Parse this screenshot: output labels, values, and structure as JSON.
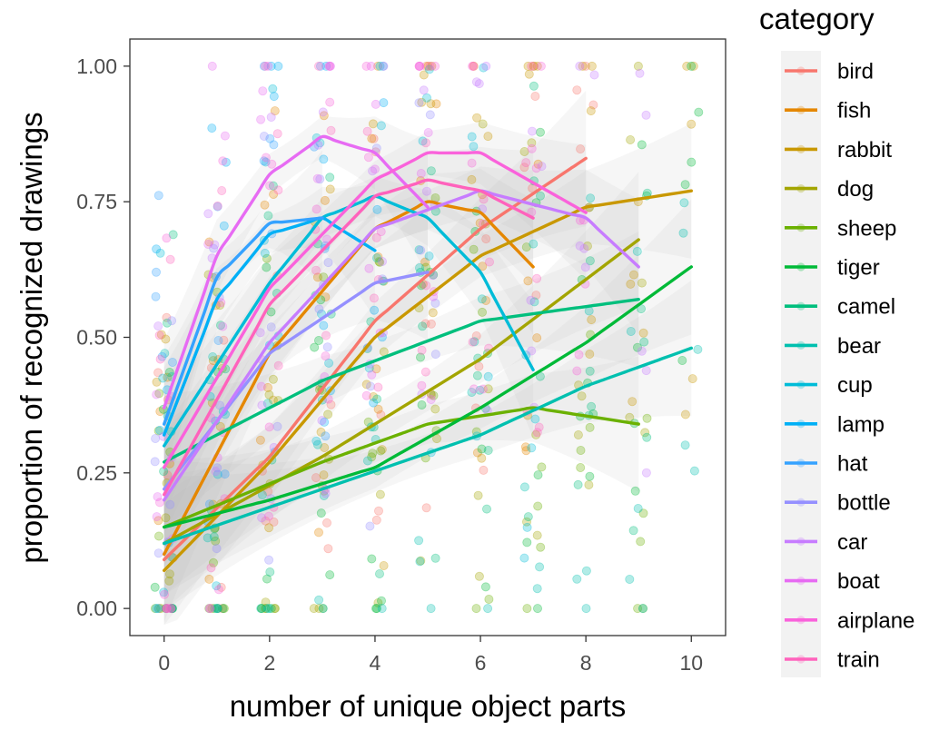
{
  "chart_data": {
    "type": "scatter",
    "xlabel": "number of unique object parts",
    "ylabel": "proportion of recognized drawings",
    "xlim": [
      -0.65,
      10.65
    ],
    "ylim": [
      -0.05,
      1.05
    ],
    "x_ticks": [
      0,
      2,
      4,
      6,
      8,
      10
    ],
    "x_tick_labels": [
      "0",
      "2",
      "4",
      "6",
      "8",
      "10"
    ],
    "y_ticks": [
      0,
      0.25,
      0.5,
      0.75,
      1.0
    ],
    "y_tick_labels": [
      "0.00",
      "0.25",
      "0.50",
      "0.75",
      "1.00"
    ],
    "grid": false,
    "legend": {
      "title": "category",
      "placement": "right"
    },
    "points_jittered": true,
    "fit": "quadratic smooth with confidence band",
    "series": [
      {
        "name": "bird",
        "color": "#F8766D",
        "x_range": [
          0,
          8
        ],
        "fit": [
          [
            0,
            0.09
          ],
          [
            2,
            0.28
          ],
          [
            4,
            0.53
          ],
          [
            6,
            0.7
          ],
          [
            8,
            0.83
          ]
        ]
      },
      {
        "name": "fish",
        "color": "#E58700",
        "x_range": [
          0,
          7
        ],
        "fit": [
          [
            0,
            0.1
          ],
          [
            2,
            0.47
          ],
          [
            4,
            0.7
          ],
          [
            5,
            0.75
          ],
          [
            6,
            0.73
          ],
          [
            7,
            0.63
          ]
        ]
      },
      {
        "name": "rabbit",
        "color": "#C99800",
        "x_range": [
          0,
          10
        ],
        "fit": [
          [
            0,
            0.07
          ],
          [
            2,
            0.27
          ],
          [
            4,
            0.5
          ],
          [
            6,
            0.65
          ],
          [
            8,
            0.74
          ],
          [
            10,
            0.77
          ]
        ]
      },
      {
        "name": "dog",
        "color": "#A3A500",
        "x_range": [
          0,
          9
        ],
        "fit": [
          [
            0,
            0.12
          ],
          [
            3,
            0.28
          ],
          [
            6,
            0.46
          ],
          [
            9,
            0.68
          ]
        ]
      },
      {
        "name": "sheep",
        "color": "#6BB100",
        "x_range": [
          0,
          9
        ],
        "fit": [
          [
            0,
            0.15
          ],
          [
            3,
            0.27
          ],
          [
            5,
            0.34
          ],
          [
            7,
            0.37
          ],
          [
            9,
            0.34
          ]
        ]
      },
      {
        "name": "tiger",
        "color": "#00BA38",
        "x_range": [
          0,
          10
        ],
        "fit": [
          [
            0,
            0.15
          ],
          [
            2,
            0.2
          ],
          [
            4,
            0.26
          ],
          [
            6,
            0.37
          ],
          [
            8,
            0.49
          ],
          [
            10,
            0.63
          ]
        ]
      },
      {
        "name": "camel",
        "color": "#00BF7D",
        "x_range": [
          0,
          9
        ],
        "fit": [
          [
            0,
            0.27
          ],
          [
            3,
            0.42
          ],
          [
            6,
            0.53
          ],
          [
            9,
            0.57
          ]
        ]
      },
      {
        "name": "bear",
        "color": "#00C0AF",
        "x_range": [
          0,
          10
        ],
        "fit": [
          [
            0,
            0.12
          ],
          [
            3,
            0.22
          ],
          [
            6,
            0.32
          ],
          [
            8,
            0.41
          ],
          [
            10,
            0.48
          ]
        ]
      },
      {
        "name": "cup",
        "color": "#00BCD8",
        "x_range": [
          0,
          7
        ],
        "fit": [
          [
            0,
            0.3
          ],
          [
            2,
            0.6
          ],
          [
            3,
            0.72
          ],
          [
            4,
            0.76
          ],
          [
            5,
            0.72
          ],
          [
            6,
            0.62
          ],
          [
            7,
            0.44
          ]
        ]
      },
      {
        "name": "lamp",
        "color": "#00B0F6",
        "x_range": [
          0,
          4
        ],
        "fit": [
          [
            0,
            0.32
          ],
          [
            1,
            0.57
          ],
          [
            2,
            0.69
          ],
          [
            3,
            0.72
          ],
          [
            4,
            0.66
          ]
        ]
      },
      {
        "name": "hat",
        "color": "#35A2FF",
        "x_range": [
          0,
          3
        ],
        "fit": [
          [
            0,
            0.34
          ],
          [
            1,
            0.61
          ],
          [
            2,
            0.71
          ],
          [
            3,
            0.72
          ]
        ]
      },
      {
        "name": "bottle",
        "color": "#9590FF",
        "x_range": [
          0,
          5
        ],
        "fit": [
          [
            0,
            0.22
          ],
          [
            2,
            0.47
          ],
          [
            4,
            0.6
          ],
          [
            5,
            0.62
          ]
        ]
      },
      {
        "name": "car",
        "color": "#C77CFF",
        "x_range": [
          0,
          9
        ],
        "fit": [
          [
            0,
            0.2
          ],
          [
            2,
            0.49
          ],
          [
            4,
            0.7
          ],
          [
            6,
            0.77
          ],
          [
            8,
            0.72
          ],
          [
            9,
            0.63
          ]
        ]
      },
      {
        "name": "boat",
        "color": "#E76BF3",
        "x_range": [
          0,
          5
        ],
        "fit": [
          [
            0,
            0.37
          ],
          [
            1,
            0.65
          ],
          [
            2,
            0.8
          ],
          [
            3,
            0.87
          ],
          [
            4,
            0.84
          ],
          [
            5,
            0.74
          ]
        ]
      },
      {
        "name": "airplane",
        "color": "#FA62DB",
        "x_range": [
          0,
          8
        ],
        "fit": [
          [
            0,
            0.26
          ],
          [
            2,
            0.59
          ],
          [
            4,
            0.79
          ],
          [
            5,
            0.84
          ],
          [
            6,
            0.84
          ],
          [
            8,
            0.73
          ]
        ]
      },
      {
        "name": "train",
        "color": "#FF62BC",
        "x_range": [
          0,
          7
        ],
        "fit": [
          [
            0,
            0.21
          ],
          [
            2,
            0.56
          ],
          [
            4,
            0.76
          ],
          [
            5,
            0.79
          ],
          [
            6,
            0.77
          ],
          [
            7,
            0.72
          ]
        ]
      }
    ]
  }
}
